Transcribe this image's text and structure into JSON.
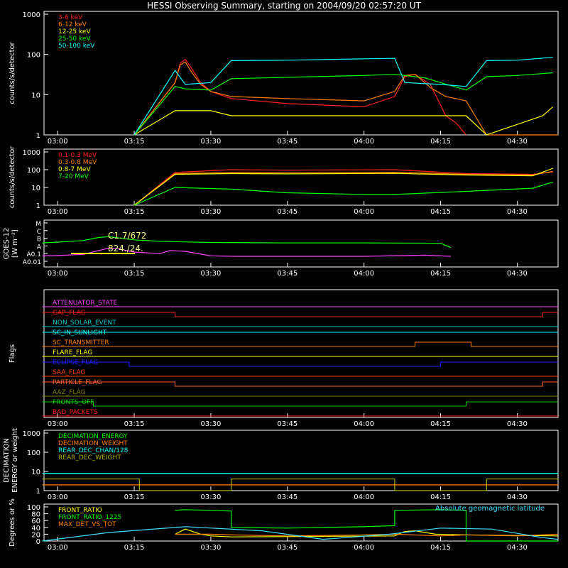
{
  "title": "HESSI Observing Summary, starting on 2004/09/20 02:57:20 UT",
  "time_ticks": [
    "03:00",
    "03:15",
    "03:30",
    "03:45",
    "04:00",
    "04:15",
    "04:30"
  ],
  "chart_data": [
    {
      "id": "hxr",
      "type": "line",
      "ylabel": "counts/s/detector",
      "yscale": "log",
      "ylim": [
        1,
        1000
      ],
      "yticks": [
        "1",
        "10",
        "100",
        "1000"
      ],
      "legend": "top-left",
      "series": [
        {
          "name": "3-6 keV",
          "color": "#ff2020",
          "x": [
            "03:15",
            "03:23",
            "03:24",
            "03:25",
            "03:26",
            "03:28",
            "03:30",
            "03:34",
            "03:45",
            "04:00",
            "04:06",
            "04:08",
            "04:10",
            "04:13",
            "04:16",
            "04:18",
            "04:20"
          ],
          "y": [
            1,
            20,
            60,
            75,
            50,
            20,
            12,
            8,
            6,
            5,
            9,
            28,
            32,
            18,
            3,
            2,
            1
          ]
        },
        {
          "name": "6-12 keV",
          "color": "#ff8000",
          "x": [
            "03:15",
            "03:23",
            "03:24",
            "03:25",
            "03:26",
            "03:28",
            "03:30",
            "03:34",
            "03:45",
            "04:00",
            "04:06",
            "04:08",
            "04:10",
            "04:13",
            "04:16",
            "04:18",
            "04:20",
            "04:24",
            "04:30",
            "04:38"
          ],
          "y": [
            1,
            20,
            55,
            65,
            40,
            18,
            12,
            9,
            8,
            7,
            12,
            30,
            32,
            15,
            9,
            8,
            7,
            1,
            1,
            1
          ]
        },
        {
          "name": "12-25 keV",
          "color": "#ffff00",
          "x": [
            "03:15",
            "03:23",
            "03:30",
            "03:34",
            "03:45",
            "04:00",
            "04:06",
            "04:15",
            "04:20",
            "04:24",
            "04:35",
            "04:37"
          ],
          "y": [
            1,
            4,
            4,
            3,
            3,
            3,
            3,
            3,
            3,
            1,
            3,
            5
          ]
        },
        {
          "name": "25-50 keV",
          "color": "#00ff00",
          "x": [
            "03:15",
            "03:23",
            "03:25",
            "03:30",
            "03:34",
            "03:45",
            "04:00",
            "04:06",
            "04:08",
            "04:12",
            "04:15",
            "04:20",
            "04:24",
            "04:30",
            "04:37"
          ],
          "y": [
            1,
            16,
            14,
            13,
            25,
            27,
            30,
            32,
            30,
            26,
            20,
            13,
            28,
            30,
            35
          ]
        },
        {
          "name": "50-100 keV",
          "color": "#00ffff",
          "x": [
            "03:15",
            "03:23",
            "03:25",
            "03:30",
            "03:34",
            "03:45",
            "04:00",
            "04:06",
            "04:08",
            "04:15",
            "04:20",
            "04:24",
            "04:30",
            "04:37"
          ],
          "y": [
            1,
            40,
            18,
            20,
            70,
            72,
            78,
            80,
            20,
            18,
            16,
            70,
            72,
            85
          ]
        }
      ]
    },
    {
      "id": "gamma",
      "type": "line",
      "ylabel": "counts/s/detector",
      "yscale": "log",
      "ylim": [
        1,
        1000
      ],
      "yticks": [
        "1",
        "10",
        "100",
        "1000"
      ],
      "legend": "top-left",
      "series": [
        {
          "name": "0.1-0.3 MeV",
          "color": "#ff2020",
          "x": [
            "03:15",
            "03:23",
            "03:34",
            "03:45",
            "04:06",
            "04:20",
            "04:33",
            "04:37"
          ],
          "y": [
            1,
            70,
            100,
            95,
            100,
            60,
            55,
            75
          ]
        },
        {
          "name": "0.3-0.8 MeV",
          "color": "#ff8000",
          "x": [
            "03:15",
            "03:23",
            "03:34",
            "03:45",
            "04:06",
            "04:20",
            "04:33",
            "04:37"
          ],
          "y": [
            1,
            60,
            70,
            68,
            72,
            55,
            50,
            80
          ]
        },
        {
          "name": "0.8-7 MeV",
          "color": "#ffff00",
          "x": [
            "03:15",
            "03:23",
            "03:34",
            "03:45",
            "04:06",
            "04:20",
            "04:33",
            "04:37"
          ],
          "y": [
            1,
            55,
            60,
            58,
            62,
            50,
            45,
            120
          ]
        },
        {
          "name": "7-20 MeV",
          "color": "#00ff00",
          "x": [
            "03:15",
            "03:23",
            "03:34",
            "03:45",
            "04:00",
            "04:06",
            "04:20",
            "04:33",
            "04:37"
          ],
          "y": [
            1,
            10,
            8,
            5,
            4,
            4,
            6,
            9,
            20
          ]
        }
      ]
    },
    {
      "id": "goes",
      "type": "line",
      "ylabel": "GOES-12",
      "ylabel2": "[W m⁻²]",
      "yscale": "log",
      "yticks": [
        "A0.01",
        "A0.1",
        "A",
        "B",
        "C",
        "M"
      ],
      "annotations": [
        "C1.7/672",
        "824./24."
      ],
      "series": [
        {
          "name": "GOES 1-8 A",
          "color": "#00ff00",
          "x": [
            "02:57",
            "03:00",
            "03:05",
            "03:08",
            "03:10",
            "03:15",
            "03:20",
            "03:30",
            "03:45",
            "04:00",
            "04:15",
            "04:17"
          ],
          "y": [
            0.9,
            1.0,
            1.2,
            1.6,
            1.7,
            1.3,
            1.1,
            0.95,
            0.9,
            0.9,
            0.85,
            0.3
          ]
        },
        {
          "name": "GOES 0.5-4 A",
          "color": "#ff40ff",
          "x": [
            "02:57",
            "03:00",
            "03:05",
            "03:08",
            "03:10",
            "03:12",
            "03:15",
            "03:20",
            "03:22",
            "03:25",
            "03:30",
            "03:35",
            "03:45",
            "04:00",
            "04:12",
            "04:15",
            "04:17"
          ],
          "y": [
            -0.8,
            -0.75,
            -0.6,
            -0.1,
            0.2,
            0.1,
            -0.3,
            -0.5,
            -0.1,
            -0.2,
            -0.8,
            -0.85,
            -0.85,
            -0.85,
            -0.7,
            -0.8,
            -0.85
          ]
        }
      ]
    },
    {
      "id": "flags",
      "type": "line",
      "ylabel": "Flags",
      "series": [
        {
          "name": "ATTENUATOR_STATE",
          "color": "#ff40ff",
          "segments": [
            [
              "02:57",
              "04:38",
              0
            ]
          ]
        },
        {
          "name": "GAP_FLAG",
          "color": "#ff2020",
          "segments": [
            [
              "02:57",
              "03:23",
              1
            ],
            [
              "03:23",
              "04:35",
              0
            ],
            [
              "04:35",
              "04:38",
              1
            ]
          ]
        },
        {
          "name": "NON_SOLAR_EVENT",
          "color": "#00cccc",
          "segments": [
            [
              "02:57",
              "04:38",
              0
            ]
          ]
        },
        {
          "name": "SC_IN_SUNLIGHT",
          "color": "#00ffff",
          "segments": [
            [
              "02:57",
              "04:38",
              1
            ]
          ]
        },
        {
          "name": "SC_TRANSMITTER",
          "color": "#ff8000",
          "segments": [
            [
              "02:57",
              "04:10",
              0
            ],
            [
              "04:10",
              "04:15",
              1
            ],
            [
              "04:15",
              "04:21",
              1
            ],
            [
              "04:21",
              "04:38",
              0
            ]
          ]
        },
        {
          "name": "FLARE_FLAG",
          "color": "#ffff00",
          "segments": [
            [
              "02:57",
              "04:38",
              0
            ]
          ]
        },
        {
          "name": "ECLIPSE_FLAG",
          "color": "#2020ff",
          "segments": [
            [
              "02:57",
              "03:14",
              1
            ],
            [
              "03:14",
              "04:15",
              0
            ],
            [
              "04:15",
              "04:38",
              1
            ]
          ]
        },
        {
          "name": "SAA_FLAG",
          "color": "#ff4000",
          "segments": [
            [
              "02:57",
              "04:38",
              0
            ]
          ]
        },
        {
          "name": "PARTICLE_FLAG",
          "color": "#ff6020",
          "segments": [
            [
              "02:57",
              "03:23",
              1
            ],
            [
              "03:23",
              "04:35",
              0
            ],
            [
              "04:35",
              "04:38",
              1
            ]
          ]
        },
        {
          "name": "AAZ_FLAG",
          "color": "#808000",
          "segments": [
            [
              "02:57",
              "04:38",
              0
            ]
          ]
        },
        {
          "name": "FRONTS_OFF",
          "color": "#00cc00",
          "segments": [
            [
              "02:57",
              "03:07",
              1
            ],
            [
              "03:07",
              "04:20",
              0
            ],
            [
              "04:20",
              "04:38",
              1
            ]
          ]
        },
        {
          "name": "BAD_PACKETS",
          "color": "#ff2020",
          "segments": [
            [
              "02:57",
              "04:38",
              0
            ]
          ]
        }
      ]
    },
    {
      "id": "decimation",
      "type": "line",
      "ylabel": "DECIMATION",
      "ylabel2": "ENERGY or weight",
      "yscale": "log",
      "ylim": [
        1,
        1000
      ],
      "yticks": [
        "1",
        "10",
        "100",
        "1000"
      ],
      "legend": "top-left",
      "series": [
        {
          "name": "DECIMATION_ENERGY",
          "color": "#00ff00",
          "x": [
            "02:57",
            "04:38"
          ],
          "y": [
            8,
            8
          ]
        },
        {
          "name": "DECIMATION_WEIGHT",
          "color": "#ff8000",
          "x": [
            "02:57",
            "04:38"
          ],
          "y": [
            2,
            2
          ]
        },
        {
          "name": "REAR_DEC_CHAN/128",
          "color": "#00ffff",
          "x": [
            "02:57",
            "03:16",
            "03:16",
            "03:34",
            "03:34",
            "04:06",
            "04:06",
            "04:24",
            "04:24",
            "04:38"
          ],
          "y": [
            8,
            8,
            8,
            8,
            8,
            8,
            8,
            8,
            8,
            8
          ]
        },
        {
          "name": "REAR_DEC_WEIGHT",
          "color": "#b0b000",
          "x": [
            "02:57",
            "03:16",
            "03:16",
            "03:34",
            "03:34",
            "04:06",
            "04:06",
            "04:24",
            "04:24",
            "04:38"
          ],
          "y": [
            4,
            4,
            1,
            1,
            4,
            4,
            1,
            1,
            4,
            4
          ]
        }
      ]
    },
    {
      "id": "ratios",
      "type": "line",
      "ylabel": "Degrees or %",
      "ylim": [
        0,
        100
      ],
      "yticks": [
        "0",
        "20",
        "40",
        "60",
        "80",
        "100"
      ],
      "legend": "top-left",
      "extra_label": "Absolute geomagnetic latitude",
      "series": [
        {
          "name": "FRONT_RATIO",
          "color": "#ffff00",
          "x": [
            "03:23",
            "03:25",
            "03:28",
            "03:30",
            "03:34",
            "04:06",
            "04:08",
            "04:10",
            "04:14",
            "04:20",
            "04:38"
          ],
          "y": [
            20,
            35,
            20,
            15,
            12,
            15,
            28,
            30,
            20,
            18,
            15
          ]
        },
        {
          "name": "FRONT_RATIO_1225",
          "color": "#00ff00",
          "x": [
            "03:23",
            "03:25",
            "03:30",
            "03:34",
            "03:34",
            "03:45",
            "04:00",
            "04:06",
            "04:06",
            "04:15",
            "04:20",
            "04:20",
            "04:38"
          ],
          "y": [
            90,
            92,
            90,
            88,
            40,
            38,
            42,
            45,
            90,
            92,
            90,
            0,
            0
          ]
        },
        {
          "name": "MAX_DET_VS_TOT",
          "color": "#ff8000",
          "x": [
            "03:23",
            "03:30",
            "03:34",
            "03:45",
            "04:00",
            "04:06",
            "04:15",
            "04:20",
            "04:30",
            "04:38"
          ],
          "y": [
            20,
            20,
            18,
            15,
            18,
            20,
            15,
            18,
            15,
            20
          ]
        },
        {
          "name": "Absolute geomagnetic latitude",
          "color": "#40e0ff",
          "x": [
            "02:57",
            "03:10",
            "03:25",
            "03:40",
            "03:52",
            "04:05",
            "04:15",
            "04:25",
            "04:35",
            "04:38"
          ],
          "y": [
            0,
            25,
            42,
            30,
            5,
            20,
            38,
            35,
            10,
            5
          ]
        }
      ]
    }
  ]
}
